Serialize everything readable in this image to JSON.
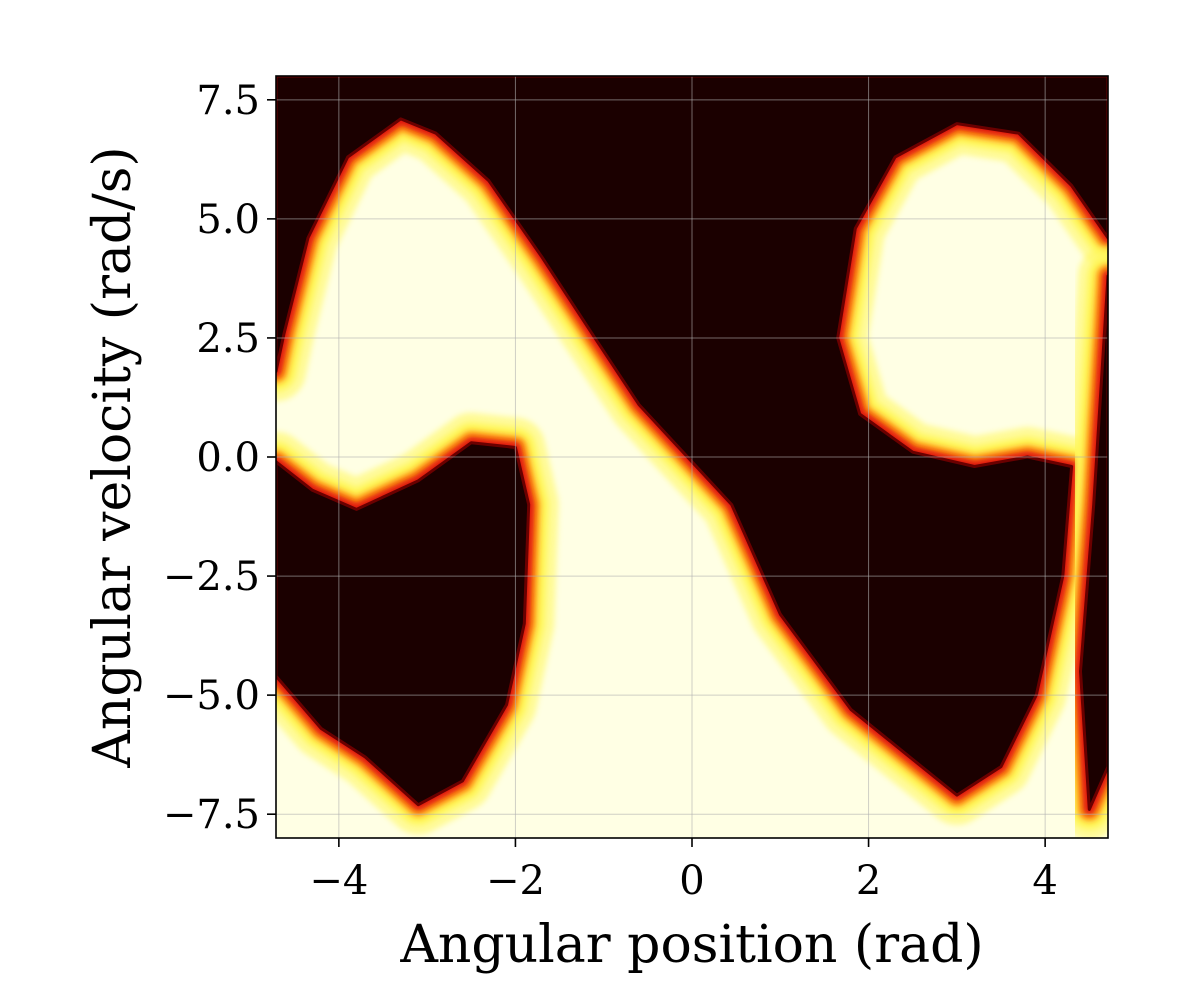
{
  "chart_data": {
    "type": "heatmap",
    "title": "",
    "xlabel": "Angular position (rad)",
    "ylabel": "Angular velocity (rad/s)",
    "xlim": [
      -4.712,
      4.712
    ],
    "ylim": [
      -8.0,
      8.0
    ],
    "x_ticks": [
      -4,
      -2,
      0,
      2,
      4
    ],
    "x_tick_labels": [
      "−4",
      "−2",
      "0",
      "2",
      "4"
    ],
    "y_ticks": [
      7.5,
      5.0,
      2.5,
      0.0,
      -2.5,
      -5.0,
      -7.5
    ],
    "y_tick_labels": [
      "7.5",
      "5.0",
      "2.5",
      "0.0",
      "−2.5",
      "−5.0",
      "−7.5"
    ],
    "grid": true,
    "colormap": "hot",
    "colors": {
      "dark": "#1b0000",
      "mid_red": "#e0140a",
      "orange": "#ff9d17",
      "yellow": "#fff75a",
      "light": "#ffffe4",
      "grid": "#b0b0b0"
    },
    "regions": [
      {
        "name": "dark-upper-center",
        "color": "dark",
        "boundary": [
          [
            -4.712,
            8.0
          ],
          [
            4.712,
            8.0
          ],
          [
            4.712,
            4.6
          ],
          [
            4.3,
            5.7
          ],
          [
            3.7,
            6.8
          ],
          [
            3.0,
            7.0
          ],
          [
            2.3,
            6.3
          ],
          [
            1.85,
            4.8
          ],
          [
            1.65,
            2.5
          ],
          [
            1.9,
            0.9
          ],
          [
            2.5,
            0.1
          ],
          [
            3.2,
            -0.2
          ],
          [
            3.8,
            0.0
          ],
          [
            4.3,
            -0.2
          ],
          [
            4.2,
            -2.5
          ],
          [
            3.9,
            -5.0
          ],
          [
            3.5,
            -6.5
          ],
          [
            3.0,
            -7.1
          ],
          [
            2.4,
            -6.2
          ],
          [
            1.8,
            -5.3
          ],
          [
            1.0,
            -3.3
          ],
          [
            0.45,
            -1.0
          ],
          [
            0.0,
            -0.1
          ],
          [
            -0.6,
            1.1
          ],
          [
            -1.1,
            2.5
          ],
          [
            -1.7,
            4.2
          ],
          [
            -2.3,
            5.8
          ],
          [
            -2.9,
            6.8
          ],
          [
            -3.3,
            7.1
          ],
          [
            -3.9,
            6.3
          ],
          [
            -4.35,
            4.6
          ],
          [
            -4.62,
            2.6
          ],
          [
            -4.712,
            1.8
          ]
        ]
      },
      {
        "name": "dark-left-lobe",
        "color": "dark",
        "boundary": [
          [
            -4.712,
            -0.1
          ],
          [
            -4.3,
            -0.7
          ],
          [
            -3.8,
            -1.1
          ],
          [
            -3.1,
            -0.5
          ],
          [
            -2.5,
            0.3
          ],
          [
            -2.0,
            0.2
          ],
          [
            -1.85,
            -1.0
          ],
          [
            -1.9,
            -3.5
          ],
          [
            -2.1,
            -5.2
          ],
          [
            -2.6,
            -6.8
          ],
          [
            -3.1,
            -7.3
          ],
          [
            -3.7,
            -6.3
          ],
          [
            -4.2,
            -5.7
          ],
          [
            -4.712,
            -4.6
          ]
        ]
      },
      {
        "name": "dark-right-lobe-tail",
        "color": "dark",
        "boundary": [
          [
            4.712,
            3.8
          ],
          [
            4.712,
            -6.5
          ],
          [
            4.5,
            -7.4
          ],
          [
            4.4,
            -4.5
          ],
          [
            4.55,
            -1.0
          ]
        ]
      }
    ]
  }
}
